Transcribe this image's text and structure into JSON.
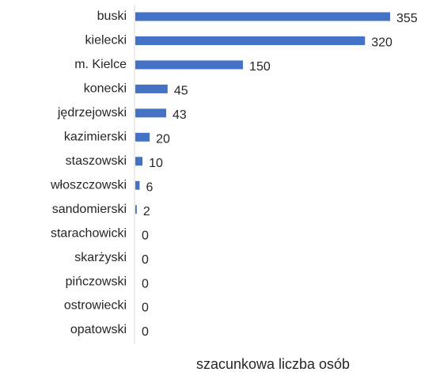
{
  "chart_data": {
    "type": "bar",
    "orientation": "horizontal",
    "x_label": "szacunkowa liczba osób",
    "categories": [
      "buski",
      "kielecki",
      "m. Kielce",
      "konecki",
      "jędrzejowski",
      "kazimierski",
      "staszowski",
      "włoszczowski",
      "sandomierski",
      "starachowicki",
      "skarżyski",
      "pińczowski",
      "ostrowiecki",
      "opatowski"
    ],
    "values": [
      355,
      320,
      150,
      45,
      43,
      20,
      10,
      6,
      2,
      0,
      0,
      0,
      0,
      0
    ],
    "color": "#4472c4"
  }
}
